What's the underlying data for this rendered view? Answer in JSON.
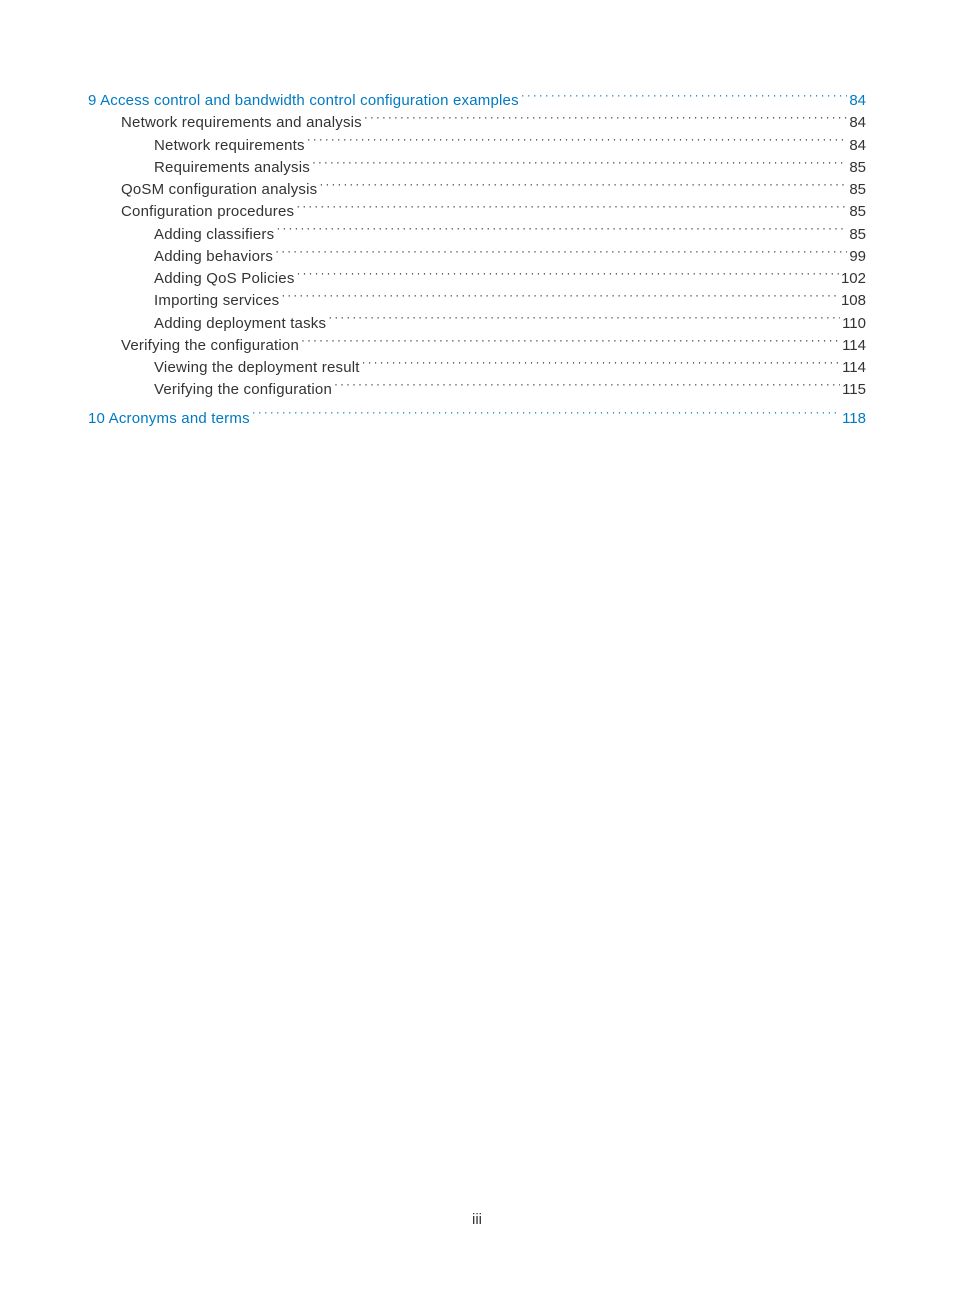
{
  "colors": {
    "link": "#007ac2",
    "text": "#333333",
    "leader": "#333333",
    "background": "#ffffff"
  },
  "typography": {
    "font_family": "Arial, Helvetica, sans-serif",
    "font_size_pt": 11,
    "line_height": 1.35,
    "font_weight": 300
  },
  "page_label": "iii",
  "toc": [
    {
      "level": 0,
      "title": "9 Access control and bandwidth control configuration examples",
      "page": "84",
      "is_link": true,
      "gap_before": false
    },
    {
      "level": 1,
      "title": "Network requirements and analysis",
      "page": "84",
      "is_link": false,
      "gap_before": false
    },
    {
      "level": 2,
      "title": "Network requirements",
      "page": "84",
      "is_link": false,
      "gap_before": false
    },
    {
      "level": 2,
      "title": "Requirements analysis",
      "page": "85",
      "is_link": false,
      "gap_before": false
    },
    {
      "level": 1,
      "title": "QoSM configuration analysis",
      "page": "85",
      "is_link": false,
      "gap_before": false
    },
    {
      "level": 1,
      "title": "Configuration procedures",
      "page": "85",
      "is_link": false,
      "gap_before": false
    },
    {
      "level": 2,
      "title": "Adding classifiers",
      "page": "85",
      "is_link": false,
      "gap_before": false
    },
    {
      "level": 2,
      "title": "Adding behaviors",
      "page": "99",
      "is_link": false,
      "gap_before": false
    },
    {
      "level": 2,
      "title": "Adding QoS Policies",
      "page": "102",
      "is_link": false,
      "gap_before": false
    },
    {
      "level": 2,
      "title": "Importing services",
      "page": "108",
      "is_link": false,
      "gap_before": false
    },
    {
      "level": 2,
      "title": "Adding deployment tasks",
      "page": "110",
      "is_link": false,
      "gap_before": false
    },
    {
      "level": 1,
      "title": "Verifying the configuration",
      "page": "114",
      "is_link": false,
      "gap_before": false
    },
    {
      "level": 2,
      "title": "Viewing the deployment result",
      "page": "114",
      "is_link": false,
      "gap_before": false
    },
    {
      "level": 2,
      "title": "Verifying the configuration",
      "page": "115",
      "is_link": false,
      "gap_before": false
    },
    {
      "level": 0,
      "title": "10 Acronyms and terms",
      "page": "118",
      "is_link": true,
      "gap_before": true
    }
  ]
}
